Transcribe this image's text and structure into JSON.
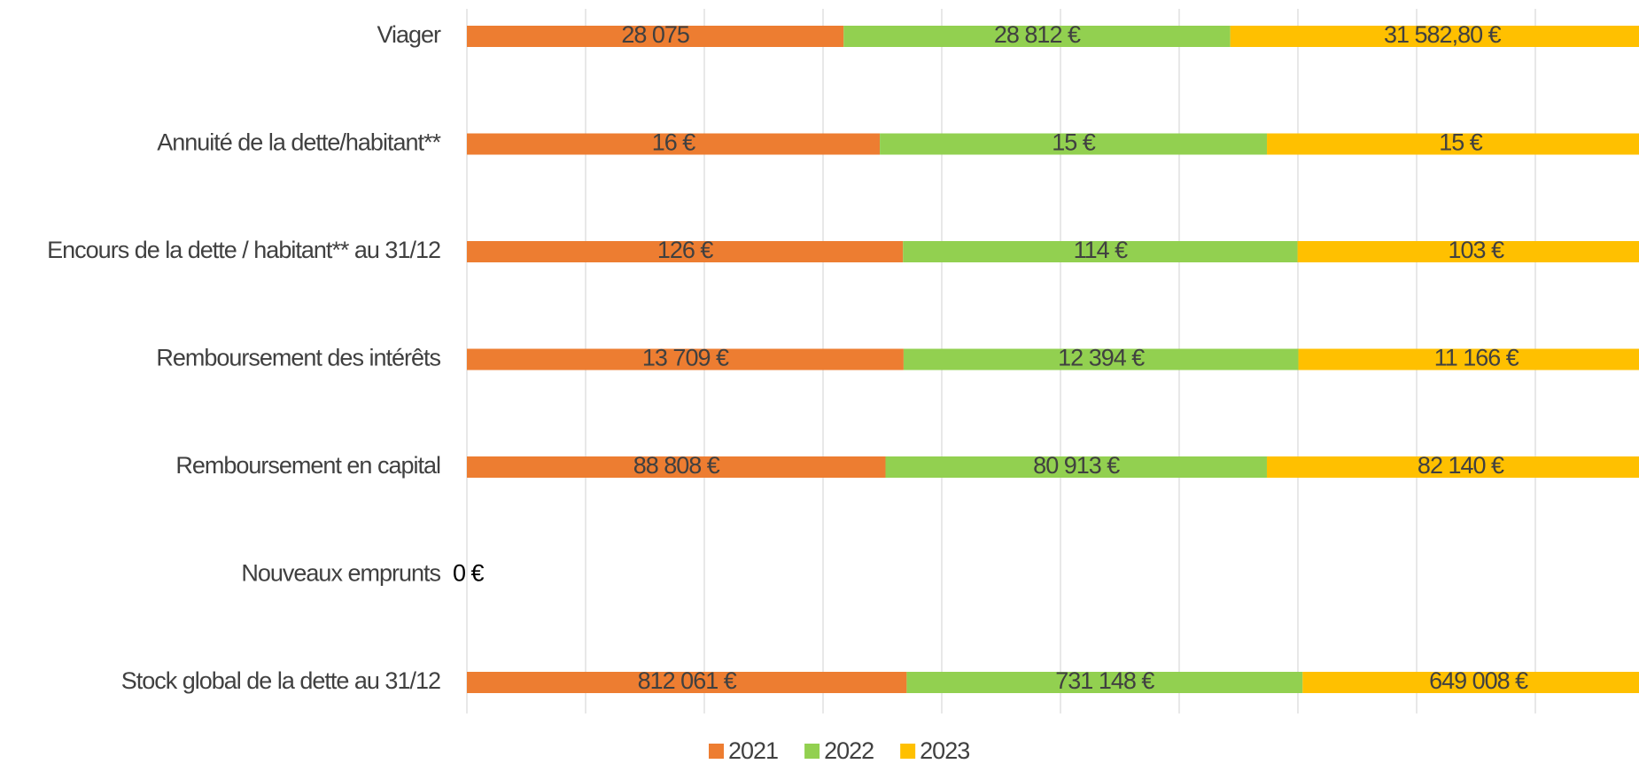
{
  "chart_data": {
    "type": "stacked_bar_100",
    "categories": [
      "Viager",
      "Annuité de la dette/habitant**",
      "Encours de la dette / habitant** au 31/12",
      "Remboursement des intérêts",
      "Remboursement en capital",
      "Nouveaux emprunts",
      "Stock global de la dette au 31/12"
    ],
    "series": [
      {
        "name": "2021",
        "color": "#ed7d31",
        "values": [
          28075,
          16,
          126,
          13709,
          88808,
          0,
          812061
        ],
        "value_labels": [
          "28 075",
          "16 €",
          "126 €",
          "13 709 €",
          "88 808 €",
          "0 €",
          "812 061 €"
        ]
      },
      {
        "name": "2022",
        "color": "#92d050",
        "values": [
          28812,
          15,
          114,
          12394,
          80913,
          0,
          731148
        ],
        "value_labels": [
          "28 812 €",
          "15 €",
          "114 €",
          "12 394 €",
          "80 913 €",
          null,
          "731 148 €"
        ]
      },
      {
        "name": "2023",
        "color": "#ffc000",
        "values": [
          31582.8,
          15,
          103,
          11166,
          82140,
          0,
          649008
        ],
        "value_labels": [
          "31 582,80 €",
          "15 €",
          "103 €",
          "11 166 €",
          "82 140 €",
          null,
          "649 008 €"
        ]
      }
    ],
    "xlim": [
      0,
      100
    ],
    "xticks": [
      0,
      10,
      20,
      30,
      40,
      50,
      60,
      70,
      80,
      90,
      100
    ],
    "grid": true,
    "legend": "bottom"
  }
}
